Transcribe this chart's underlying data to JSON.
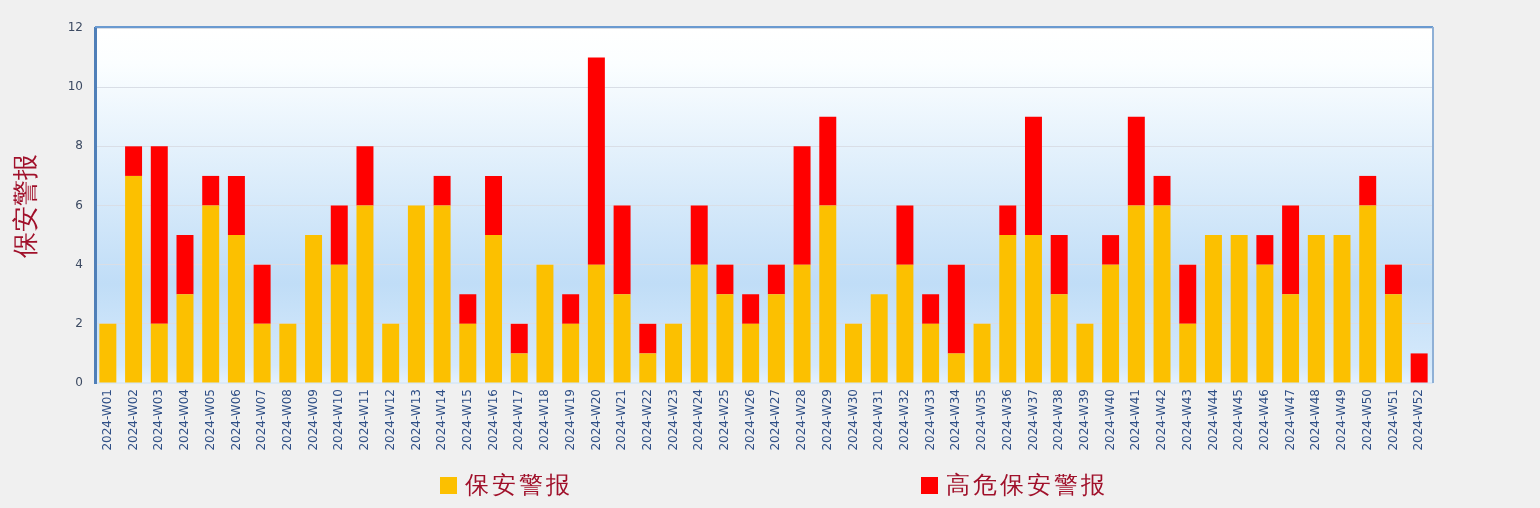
{
  "chart_data": {
    "type": "bar",
    "stacked": true,
    "ylabel": "保安警报",
    "categories": [
      "2024-W01",
      "2024-W02",
      "2024-W03",
      "2024-W04",
      "2024-W05",
      "2024-W06",
      "2024-W07",
      "2024-W08",
      "2024-W09",
      "2024-W10",
      "2024-W11",
      "2024-W12",
      "2024-W13",
      "2024-W14",
      "2024-W15",
      "2024-W16",
      "2024-W17",
      "2024-W18",
      "2024-W19",
      "2024-W20",
      "2024-W21",
      "2024-W22",
      "2024-W23",
      "2024-W24",
      "2024-W25",
      "2024-W26",
      "2024-W27",
      "2024-W28",
      "2024-W29",
      "2024-W30",
      "2024-W31",
      "2024-W32",
      "2024-W33",
      "2024-W34",
      "2024-W35",
      "2024-W36",
      "2024-W37",
      "2024-W38",
      "2024-W39",
      "2024-W40",
      "2024-W41",
      "2024-W42",
      "2024-W43",
      "2024-W44",
      "2024-W45",
      "2024-W46",
      "2024-W47",
      "2024-W48",
      "2024-W49",
      "2024-W50",
      "2024-W51",
      "2024-W52"
    ],
    "series": [
      {
        "name": "保安警报",
        "color": "#fcc000",
        "values": [
          2,
          7,
          2,
          3,
          6,
          5,
          2,
          2,
          5,
          4,
          6,
          2,
          6,
          6,
          2,
          5,
          1,
          4,
          2,
          4,
          3,
          1,
          2,
          4,
          3,
          2,
          3,
          4,
          6,
          2,
          3,
          4,
          2,
          1,
          2,
          5,
          5,
          3,
          2,
          4,
          6,
          6,
          2,
          5,
          5,
          4,
          3,
          5,
          5,
          6,
          3,
          0
        ]
      },
      {
        "name": "高危保安警报",
        "color": "#ff0000",
        "values": [
          0,
          1,
          6,
          2,
          1,
          2,
          2,
          0,
          0,
          2,
          2,
          0,
          0,
          1,
          1,
          2,
          1,
          0,
          1,
          7,
          3,
          1,
          0,
          2,
          1,
          1,
          1,
          4,
          3,
          0,
          0,
          2,
          1,
          3,
          0,
          1,
          4,
          2,
          0,
          1,
          3,
          1,
          2,
          0,
          0,
          1,
          3,
          0,
          0,
          1,
          1,
          1
        ]
      }
    ],
    "ylim": [
      0,
      12
    ],
    "yticks": [
      0,
      2,
      4,
      6,
      8,
      10,
      12
    ],
    "grid": "y",
    "legend": "bottom"
  }
}
